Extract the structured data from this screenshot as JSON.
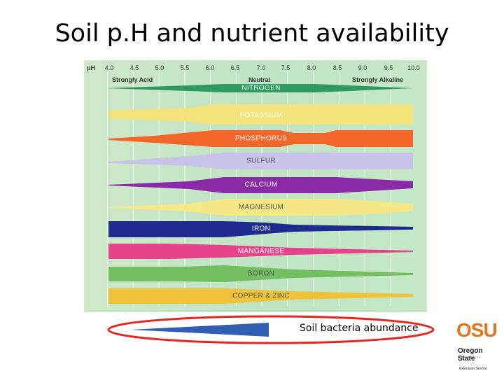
{
  "title": "Soil p.H and nutrient availability",
  "ph_axis": {
    "label": "pH",
    "ticks": [
      "4.0",
      "4.5",
      "5.0",
      "5.5",
      "6.0",
      "6.5",
      "7.0",
      "7.5",
      "8.0",
      "8.5",
      "9.0",
      "9.5",
      "10.0"
    ]
  },
  "ranges": {
    "acid": "Strongly Acid",
    "neutral": "Neutral",
    "alkaline": "Strongly Alkaline"
  },
  "nutrients": [
    {
      "label": "NITROGEN",
      "color": "#2f9a5f"
    },
    {
      "label": "POTASSIUM",
      "color": "#f4e27a"
    },
    {
      "label": "PHOSPHORUS",
      "color": "#f2662a"
    },
    {
      "label": "SULFUR",
      "color": "#c9c3ea"
    },
    {
      "label": "CALCIUM",
      "color": "#8b2aa7"
    },
    {
      "label": "MAGNESIUM",
      "color": "#f6e886"
    },
    {
      "label": "IRON",
      "color": "#1f2a8f"
    },
    {
      "label": "MANGANESE",
      "color": "#e8428d"
    },
    {
      "label": "BORON",
      "color": "#73be5e"
    },
    {
      "label": "COPPER & ZINC",
      "color": "#f0c23a"
    }
  ],
  "bacteria_label": "Soil bacteria abundance",
  "logo": {
    "mark": "OSU",
    "name": "Oregon State",
    "university": "UNIVERSITY",
    "unit": "Extension Service"
  }
}
